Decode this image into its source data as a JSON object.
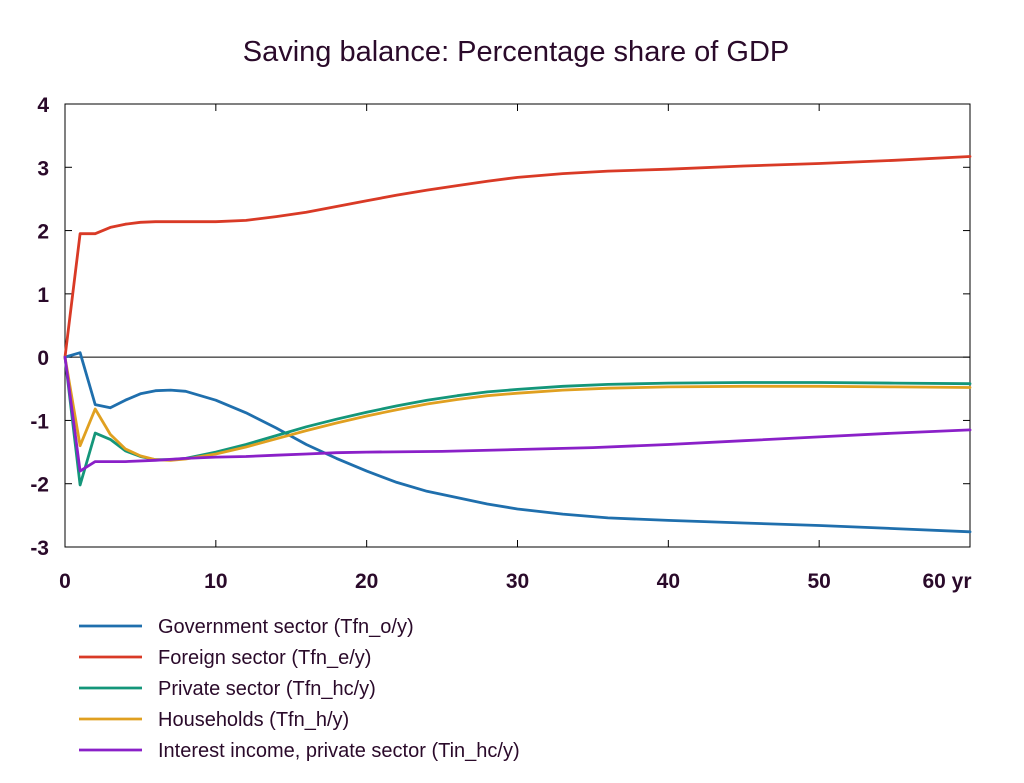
{
  "chart_data": {
    "type": "line",
    "title": "Saving balance: Percentage share of GDP",
    "xlabel": "",
    "ylabel": "",
    "xlim": [
      0,
      60
    ],
    "ylim": [
      -3,
      4
    ],
    "x_ticks": [
      0,
      10,
      20,
      30,
      40,
      50,
      60
    ],
    "x_tick_labels": [
      "0",
      "10",
      "20",
      "30",
      "40",
      "50",
      "60 yr"
    ],
    "y_ticks": [
      4,
      3,
      2,
      1,
      0,
      -1,
      -2,
      -3
    ],
    "y_tick_labels": [
      "4",
      "3",
      "2",
      "1",
      "0",
      "-1",
      "-2",
      "-3"
    ],
    "zero_line": true,
    "grid": false,
    "legend_position": "bottom",
    "series": [
      {
        "name": "Government sector (Tfn_o/y)",
        "color": "#1f6fad",
        "points": [
          [
            0,
            0
          ],
          [
            1,
            0.07
          ],
          [
            2,
            -0.75
          ],
          [
            3,
            -0.8
          ],
          [
            4,
            -0.68
          ],
          [
            5,
            -0.58
          ],
          [
            6,
            -0.53
          ],
          [
            7,
            -0.52
          ],
          [
            8,
            -0.54
          ],
          [
            10,
            -0.68
          ],
          [
            12,
            -0.88
          ],
          [
            14,
            -1.12
          ],
          [
            16,
            -1.38
          ],
          [
            18,
            -1.6
          ],
          [
            20,
            -1.8
          ],
          [
            22,
            -1.98
          ],
          [
            24,
            -2.12
          ],
          [
            26,
            -2.22
          ],
          [
            28,
            -2.32
          ],
          [
            30,
            -2.4
          ],
          [
            33,
            -2.48
          ],
          [
            36,
            -2.54
          ],
          [
            40,
            -2.58
          ],
          [
            45,
            -2.62
          ],
          [
            50,
            -2.66
          ],
          [
            55,
            -2.71
          ],
          [
            60,
            -2.76
          ]
        ]
      },
      {
        "name": "Foreign sector (Tfn_e/y)",
        "color": "#d93a26",
        "points": [
          [
            0,
            0
          ],
          [
            1,
            1.95
          ],
          [
            2,
            1.95
          ],
          [
            3,
            2.05
          ],
          [
            4,
            2.1
          ],
          [
            5,
            2.13
          ],
          [
            6,
            2.14
          ],
          [
            8,
            2.14
          ],
          [
            10,
            2.14
          ],
          [
            12,
            2.16
          ],
          [
            14,
            2.22
          ],
          [
            16,
            2.29
          ],
          [
            18,
            2.38
          ],
          [
            20,
            2.47
          ],
          [
            22,
            2.56
          ],
          [
            24,
            2.64
          ],
          [
            26,
            2.71
          ],
          [
            28,
            2.78
          ],
          [
            30,
            2.84
          ],
          [
            33,
            2.9
          ],
          [
            36,
            2.94
          ],
          [
            40,
            2.97
          ],
          [
            45,
            3.02
          ],
          [
            50,
            3.06
          ],
          [
            55,
            3.11
          ],
          [
            60,
            3.17
          ]
        ]
      },
      {
        "name": "Private sector (Tfn_hc/y)",
        "color": "#14967a",
        "points": [
          [
            0,
            0
          ],
          [
            1,
            -2.02
          ],
          [
            2,
            -1.2
          ],
          [
            3,
            -1.3
          ],
          [
            4,
            -1.48
          ],
          [
            5,
            -1.57
          ],
          [
            6,
            -1.62
          ],
          [
            7,
            -1.62
          ],
          [
            8,
            -1.6
          ],
          [
            10,
            -1.5
          ],
          [
            12,
            -1.38
          ],
          [
            14,
            -1.24
          ],
          [
            16,
            -1.1
          ],
          [
            18,
            -0.98
          ],
          [
            20,
            -0.87
          ],
          [
            22,
            -0.77
          ],
          [
            24,
            -0.68
          ],
          [
            26,
            -0.61
          ],
          [
            28,
            -0.55
          ],
          [
            30,
            -0.51
          ],
          [
            33,
            -0.46
          ],
          [
            36,
            -0.43
          ],
          [
            40,
            -0.41
          ],
          [
            45,
            -0.4
          ],
          [
            50,
            -0.4
          ],
          [
            55,
            -0.41
          ],
          [
            60,
            -0.42
          ]
        ]
      },
      {
        "name": "Households (Tfn_h/y)",
        "color": "#e0a020",
        "points": [
          [
            0,
            0
          ],
          [
            1,
            -1.4
          ],
          [
            2,
            -0.82
          ],
          [
            3,
            -1.22
          ],
          [
            4,
            -1.45
          ],
          [
            5,
            -1.56
          ],
          [
            6,
            -1.62
          ],
          [
            7,
            -1.63
          ],
          [
            8,
            -1.61
          ],
          [
            10,
            -1.53
          ],
          [
            12,
            -1.42
          ],
          [
            14,
            -1.29
          ],
          [
            16,
            -1.16
          ],
          [
            18,
            -1.04
          ],
          [
            20,
            -0.93
          ],
          [
            22,
            -0.83
          ],
          [
            24,
            -0.74
          ],
          [
            26,
            -0.67
          ],
          [
            28,
            -0.61
          ],
          [
            30,
            -0.57
          ],
          [
            33,
            -0.52
          ],
          [
            36,
            -0.49
          ],
          [
            40,
            -0.47
          ],
          [
            45,
            -0.46
          ],
          [
            50,
            -0.46
          ],
          [
            55,
            -0.47
          ],
          [
            60,
            -0.48
          ]
        ]
      },
      {
        "name": "Interest income, private sector (Tin_hc/y)",
        "color": "#8a20c8",
        "points": [
          [
            0,
            0
          ],
          [
            1,
            -1.8
          ],
          [
            2,
            -1.65
          ],
          [
            4,
            -1.65
          ],
          [
            6,
            -1.63
          ],
          [
            8,
            -1.6
          ],
          [
            10,
            -1.58
          ],
          [
            12,
            -1.57
          ],
          [
            14,
            -1.55
          ],
          [
            16,
            -1.53
          ],
          [
            18,
            -1.51
          ],
          [
            20,
            -1.5
          ],
          [
            25,
            -1.49
          ],
          [
            30,
            -1.46
          ],
          [
            35,
            -1.43
          ],
          [
            40,
            -1.38
          ],
          [
            45,
            -1.32
          ],
          [
            50,
            -1.26
          ],
          [
            55,
            -1.2
          ],
          [
            60,
            -1.15
          ]
        ]
      }
    ]
  }
}
